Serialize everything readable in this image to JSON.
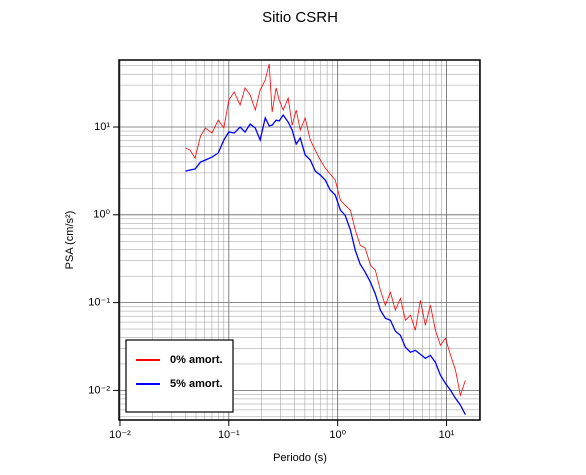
{
  "chart_data": {
    "type": "line",
    "title": "Sitio CSRH",
    "x_label": "Periodo (s)",
    "y_label": "PSA (cm/s²)",
    "xscale": "log",
    "yscale": "log",
    "grid": true,
    "legend_position": "lower left",
    "xlim": [
      0.0098,
      20.3
    ],
    "ylim": [
      0.0046,
      58
    ],
    "xticks": [
      {
        "value": 0.01,
        "label": "10⁻²"
      },
      {
        "value": 0.1,
        "label": "10⁻¹"
      },
      {
        "value": 1,
        "label": "10⁰"
      },
      {
        "value": 10,
        "label": "10¹"
      }
    ],
    "yticks": [
      {
        "value": 0.01,
        "label": "10⁻²"
      },
      {
        "value": 0.1,
        "label": "10⁻¹"
      },
      {
        "value": 1,
        "label": "10⁰"
      },
      {
        "value": 10,
        "label": "10¹"
      }
    ],
    "x": [
      0.04,
      0.044,
      0.049,
      0.055,
      0.061,
      0.07,
      0.08,
      0.09,
      0.1,
      0.112,
      0.127,
      0.141,
      0.157,
      0.175,
      0.194,
      0.216,
      0.235,
      0.25,
      0.272,
      0.29,
      0.316,
      0.351,
      0.382,
      0.416,
      0.453,
      0.503,
      0.56,
      0.622,
      0.692,
      0.769,
      0.855,
      0.95,
      1.06,
      1.17,
      1.31,
      1.45,
      1.61,
      1.79,
      2.0,
      2.22,
      2.47,
      2.74,
      3.05,
      3.39,
      3.77,
      4.19,
      4.66,
      5.17,
      5.75,
      6.39,
      7.11,
      7.9,
      8.79,
      9.77,
      10.9,
      12.1,
      13.4,
      14.9
    ],
    "series": [
      {
        "name": "0% amort.",
        "color": "#ff0000",
        "width": 0.8,
        "values": [
          5.77,
          5.47,
          4.43,
          7.89,
          9.74,
          8.54,
          12.0,
          9.74,
          20.3,
          25.1,
          17.8,
          27.9,
          23.2,
          15.6,
          26.4,
          34.4,
          52.3,
          14.8,
          27.9,
          20.3,
          15.6,
          21.4,
          10.5,
          15.6,
          9.24,
          12.7,
          7.11,
          5.47,
          4.21,
          3.41,
          2.91,
          2.49,
          1.47,
          1.29,
          1.13,
          0.67,
          0.452,
          0.417,
          0.267,
          0.234,
          0.138,
          0.0933,
          0.131,
          0.082,
          0.112,
          0.063,
          0.0718,
          0.0484,
          0.106,
          0.0552,
          0.0933,
          0.0484,
          0.0327,
          0.0393,
          0.0251,
          0.0169,
          0.0088,
          0.013
        ]
      },
      {
        "name": "5% amort.",
        "color": "#0000ff",
        "width": 1.3,
        "values": [
          3.15,
          3.24,
          3.32,
          3.99,
          4.21,
          4.55,
          5.06,
          7.11,
          8.77,
          8.54,
          10.0,
          8.77,
          10.8,
          9.75,
          7.11,
          12.7,
          10.3,
          10.5,
          12.0,
          11.7,
          13.7,
          11.4,
          9.24,
          6.4,
          7.5,
          4.8,
          4.21,
          3.15,
          2.84,
          2.49,
          1.91,
          1.68,
          1.13,
          0.99,
          0.67,
          0.396,
          0.274,
          0.222,
          0.171,
          0.125,
          0.082,
          0.0664,
          0.063,
          0.0472,
          0.0425,
          0.031,
          0.0272,
          0.0286,
          0.0258,
          0.0232,
          0.0251,
          0.0209,
          0.0149,
          0.012,
          0.01,
          0.0081,
          0.0068,
          0.0053
        ]
      }
    ]
  }
}
